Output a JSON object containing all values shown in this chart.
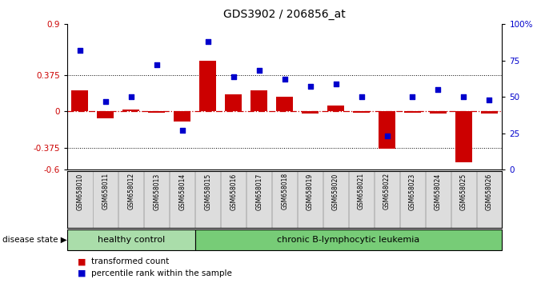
{
  "title": "GDS3902 / 206856_at",
  "samples": [
    "GSM658010",
    "GSM658011",
    "GSM658012",
    "GSM658013",
    "GSM658014",
    "GSM658015",
    "GSM658016",
    "GSM658017",
    "GSM658018",
    "GSM658019",
    "GSM658020",
    "GSM658021",
    "GSM658022",
    "GSM658023",
    "GSM658024",
    "GSM658025",
    "GSM658026"
  ],
  "bar_values": [
    0.22,
    -0.07,
    0.02,
    -0.01,
    -0.1,
    0.52,
    0.18,
    0.22,
    0.15,
    -0.02,
    0.06,
    -0.01,
    -0.38,
    -0.01,
    -0.02,
    -0.52,
    -0.02
  ],
  "dot_values": [
    0.82,
    0.47,
    0.5,
    0.72,
    0.27,
    0.88,
    0.64,
    0.68,
    0.62,
    0.57,
    0.59,
    0.5,
    0.23,
    0.5,
    0.55,
    0.5,
    0.48
  ],
  "bar_color": "#cc0000",
  "dot_color": "#0000cc",
  "zero_line_color": "#cc0000",
  "hline_color": "#000000",
  "ylim_left": [
    -0.6,
    0.9
  ],
  "ylim_right": [
    0,
    1.0
  ],
  "yticks_left": [
    -0.6,
    -0.375,
    0.0,
    0.375,
    0.9
  ],
  "ytick_labels_left": [
    "-0.6",
    "-0.375",
    "0",
    "0.375",
    "0.9"
  ],
  "yticks_right": [
    0,
    0.25,
    0.5,
    0.75,
    1.0
  ],
  "ytick_labels_right": [
    "0",
    "25",
    "50",
    "75",
    "100%"
  ],
  "hlines": [
    0.375,
    -0.375
  ],
  "healthy_control_count": 5,
  "healthy_label": "healthy control",
  "disease_label": "chronic B-lymphocytic leukemia",
  "legend_bar": "transformed count",
  "legend_dot": "percentile rank within the sample",
  "disease_state_label": "disease state",
  "bg_color_healthy": "#aaddaa",
  "bg_color_disease": "#77cc77",
  "cell_bg": "#dddddd",
  "cell_edge": "#aaaaaa"
}
